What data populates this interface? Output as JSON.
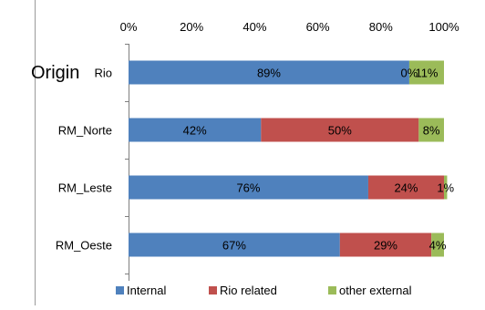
{
  "chart_data": {
    "type": "bar",
    "orientation": "horizontal",
    "stacked": true,
    "percent": true,
    "title": "",
    "ylabel": "Origin",
    "xlabel": "",
    "xlim": [
      0,
      100
    ],
    "x_tick_labels": [
      "0%",
      "20%",
      "40%",
      "60%",
      "80%",
      "100%"
    ],
    "categories": [
      "Rio",
      "RM_Norte",
      "RM_Leste",
      "RM_Oeste"
    ],
    "series": [
      {
        "name": "Internal",
        "color": "#4f81bd",
        "values": [
          89,
          42,
          76,
          67
        ],
        "labels": [
          "89%",
          "42%",
          "76%",
          "67%"
        ]
      },
      {
        "name": "Rio related",
        "color": "#c0504d",
        "values": [
          0,
          50,
          24,
          29
        ],
        "labels": [
          "0%",
          "50%",
          "24%",
          "29%"
        ]
      },
      {
        "name": "other external",
        "color": "#9bbb59",
        "values": [
          11,
          8,
          1,
          4
        ],
        "labels": [
          "11%",
          "8%",
          "1%",
          "4%"
        ]
      }
    ],
    "legend": {
      "position": "bottom"
    },
    "grid": false,
    "axis_position": "top"
  }
}
